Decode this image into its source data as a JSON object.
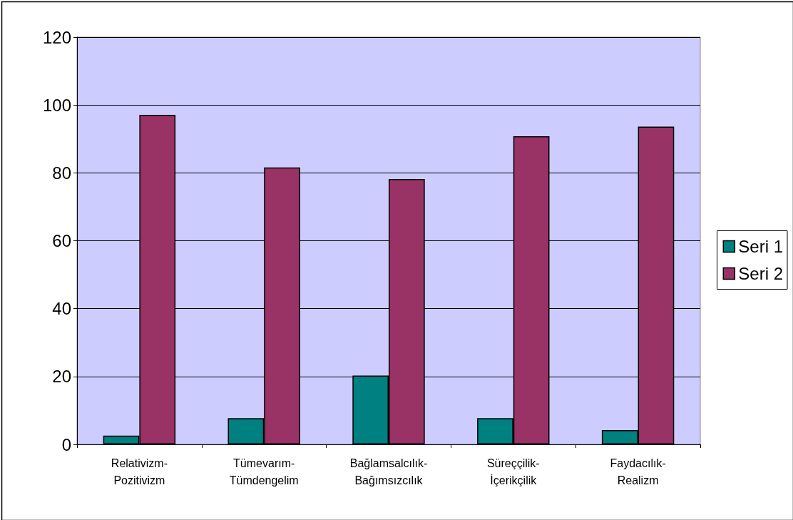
{
  "chart_data": {
    "type": "bar",
    "categories": [
      "Relativizm-\nPozitivizm",
      "Tümevarım-\nTümdengelim",
      "Bağlamsalcılık-\nBağımsızcılık",
      "Süreççilik-\nİçerikçilik",
      "Faydacılık-\nRealizm"
    ],
    "series": [
      {
        "name": "Seri 1",
        "color": "#008080",
        "values": [
          2.6,
          7.7,
          20.3,
          7.7,
          4.2
        ]
      },
      {
        "name": "Seri 2",
        "color": "#993366",
        "values": [
          97.1,
          81.6,
          78.2,
          90.8,
          93.6
        ]
      }
    ],
    "ylim": [
      0,
      120
    ],
    "yticks": [
      0,
      20,
      40,
      60,
      80,
      100,
      120
    ],
    "grid": "y",
    "legend": "right"
  }
}
